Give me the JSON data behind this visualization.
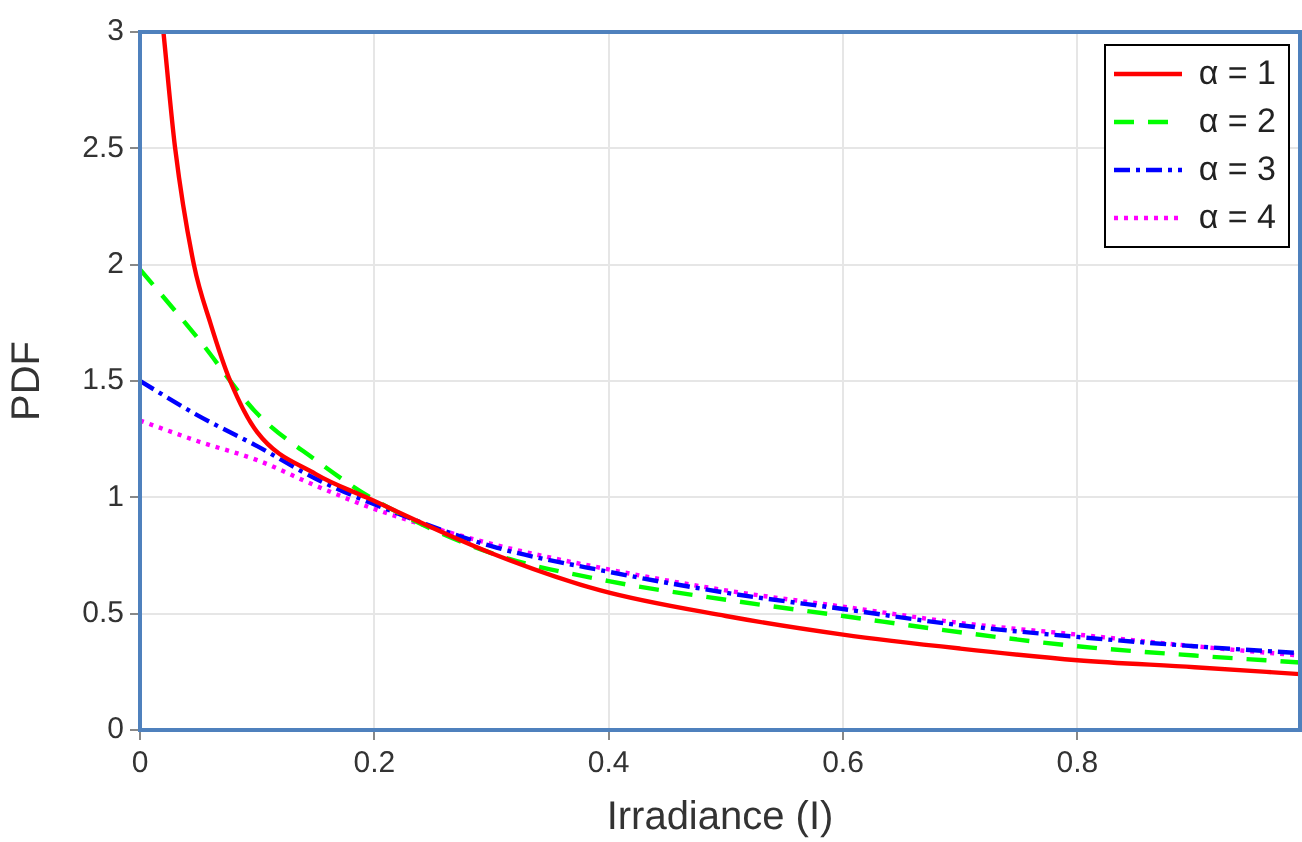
{
  "chart_data": {
    "type": "line",
    "xlabel": "Irradiance (I)",
    "ylabel": "PDF",
    "xlim": [
      0,
      0.99
    ],
    "xticks": [
      0,
      0.2,
      0.4,
      0.6,
      0.8
    ],
    "ylim": [
      0,
      3
    ],
    "yticks": [
      0,
      0.5,
      1,
      1.5,
      2,
      2.5,
      3
    ],
    "grid": true,
    "legend": "top right",
    "marker": "none",
    "series": [
      {
        "name": "α = 1",
        "color": "#ff0000",
        "line_style": "solid",
        "x": [
          0.02,
          0.03,
          0.046,
          0.06,
          0.077,
          0.1,
          0.15,
          0.193,
          0.3,
          0.393,
          0.5,
          0.6,
          0.7,
          0.8,
          0.9,
          0.99
        ],
        "values": [
          3,
          2.5,
          2,
          1.75,
          1.5,
          1.28,
          1.1,
          1,
          0.76,
          0.6,
          0.49,
          0.41,
          0.35,
          0.3,
          0.27,
          0.24
        ]
      },
      {
        "name": "α = 2",
        "color": "#00ff00",
        "line_style": "dashed",
        "x": [
          0,
          0.05,
          0.1,
          0.15,
          0.2,
          0.3,
          0.4,
          0.5,
          0.6,
          0.7,
          0.8,
          0.9,
          0.99
        ],
        "values": [
          1.98,
          1.68,
          1.36,
          1.16,
          0.99,
          0.76,
          0.64,
          0.56,
          0.49,
          0.42,
          0.36,
          0.32,
          0.29
        ]
      },
      {
        "name": "α = 3",
        "color": "#0000ff",
        "line_style": "dashdot",
        "x": [
          0,
          0.05,
          0.1,
          0.15,
          0.2,
          0.3,
          0.4,
          0.5,
          0.6,
          0.7,
          0.8,
          0.9,
          0.99
        ],
        "values": [
          1.5,
          1.35,
          1.22,
          1.08,
          0.97,
          0.79,
          0.68,
          0.59,
          0.52,
          0.45,
          0.4,
          0.36,
          0.33
        ]
      },
      {
        "name": "α = 4",
        "color": "#ff00ff",
        "line_style": "dotted",
        "x": [
          0,
          0.05,
          0.1,
          0.15,
          0.2,
          0.3,
          0.4,
          0.5,
          0.6,
          0.7,
          0.8,
          0.9,
          0.99
        ],
        "values": [
          1.33,
          1.24,
          1.16,
          1.05,
          0.95,
          0.8,
          0.69,
          0.6,
          0.53,
          0.46,
          0.41,
          0.36,
          0.32
        ]
      }
    ]
  }
}
